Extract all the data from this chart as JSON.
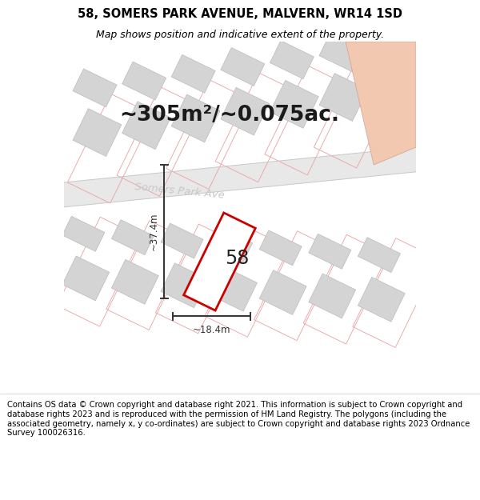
{
  "title_line1": "58, SOMERS PARK AVENUE, MALVERN, WR14 1SD",
  "title_line2": "Map shows position and indicative extent of the property.",
  "area_text": "~305m²/~0.075ac.",
  "street_label": "Somers Park Ave",
  "plot_number": "58",
  "dim_width": "~18.4m",
  "dim_height": "~37.4m",
  "footer_text": "Contains OS data © Crown copyright and database right 2021. This information is subject to Crown copyright and database rights 2023 and is reproduced with the permission of HM Land Registry. The polygons (including the associated geometry, namely x, y co-ordinates) are subject to Crown copyright and database rights 2023 Ordnance Survey 100026316.",
  "map_bg": "#f5f5f5",
  "road_fill": "#e8e8e8",
  "building_fill": "#d4d4d4",
  "building_edge": "#bbbbbb",
  "plot_edge_color": "#e8a0a0",
  "main_plot_color": "#cc0000",
  "dim_color": "#333333",
  "street_color": "#c8c8c8",
  "highlight_fill": "#f2c8b0",
  "highlight_edge": "#d0a090",
  "title_fontsize": 10.5,
  "subtitle_fontsize": 9,
  "area_fontsize": 19,
  "footer_fontsize": 7.2,
  "ang": -26.0
}
